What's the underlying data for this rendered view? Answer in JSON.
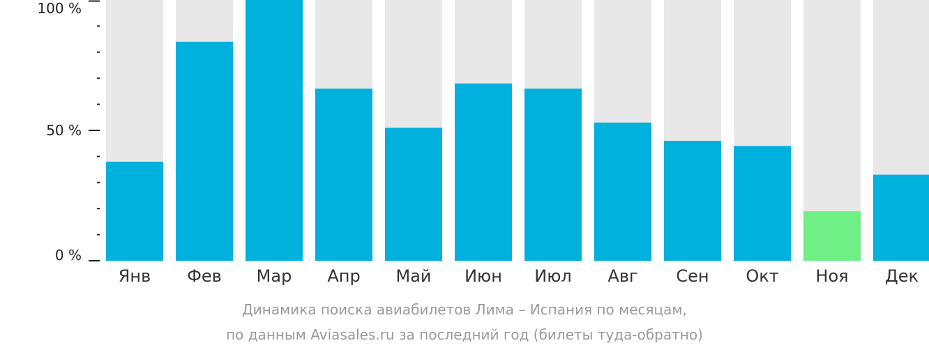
{
  "chart_data": {
    "type": "bar",
    "categories": [
      "Янв",
      "Фев",
      "Мар",
      "Апр",
      "Май",
      "Июн",
      "Июл",
      "Авг",
      "Сен",
      "Окт",
      "Ноя",
      "Дек"
    ],
    "values": [
      38,
      84,
      100,
      66,
      51,
      68,
      66,
      53,
      46,
      44,
      19,
      33
    ],
    "y_tick_labels": [
      "100 %",
      "50 %",
      "0 %"
    ],
    "y_ticks": [
      100,
      50,
      0
    ],
    "ylim": [
      0,
      100
    ],
    "highlight_index": 10,
    "grid": false,
    "colors": {
      "bar": "#00b0dd",
      "highlight": "#6fef85",
      "background_bar": "#e8e8e8",
      "axis": "#222222"
    }
  },
  "caption": {
    "line1": "Динамика поиска авиабилетов Лима – Испания по месяцам,",
    "line2": "по данным Aviasales.ru за последний год (билеты туда-обратно)"
  }
}
